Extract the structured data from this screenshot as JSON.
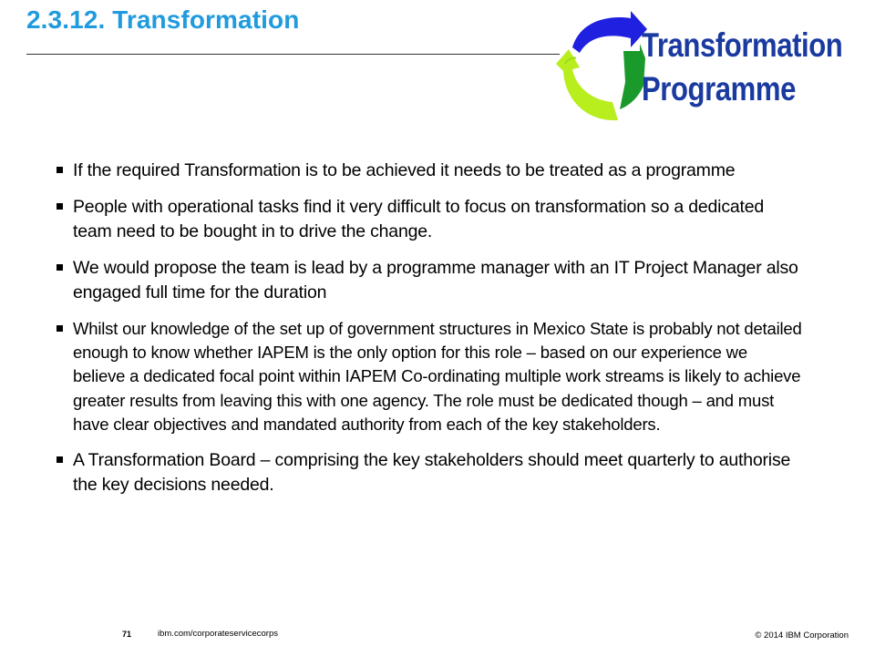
{
  "slide": {
    "title": "2.3.12.  Transformation",
    "logo": {
      "line1": "Transformation",
      "line2": "Programme",
      "colors": {
        "arrow_blue": "#2020e0",
        "arrow_green": "#1a9a2a",
        "arrow_lime": "#b8ee1e",
        "text": "#1a3aa0"
      }
    }
  },
  "bullets": [
    "If the required Transformation is to be achieved it needs to be treated as a programme",
    "People with operational tasks find it very difficult to focus on transformation so a dedicated team need to be bought in to drive the change.",
    "We would propose the team is lead by a programme manager with an IT Project Manager also engaged full time for the duration",
    "Whilst our knowledge of the set up of government structures in Mexico State is probably not detailed enough to know whether IAPEM is the only option for this role – based on our experience we believe a dedicated focal point within IAPEM Co-ordinating multiple work streams is likely to achieve greater results from leaving this with one agency. The role must be dedicated though – and must have clear objectives and mandated authority from each of the key stakeholders.",
    "A Transformation Board – comprising the key stakeholders should meet quarterly to  authorise the key decisions needed."
  ],
  "footer": {
    "page_number": "71",
    "url": "ibm.com/corporateservicecorps",
    "copyright": "© 2014 IBM  Corporation"
  },
  "colors": {
    "title": "#1f9bde"
  }
}
